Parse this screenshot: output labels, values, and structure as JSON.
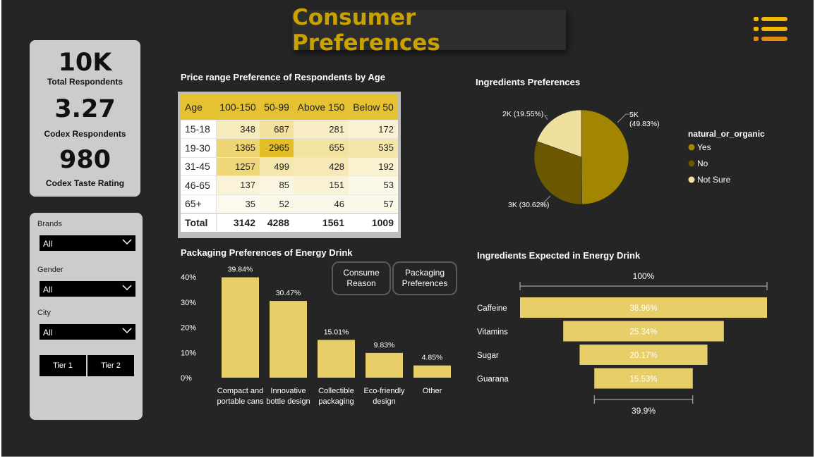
{
  "title": "Consumer Preferences",
  "colors": {
    "background": "#252525",
    "accent": "#c9a200",
    "bar": "#e8ce68"
  },
  "kpis": [
    {
      "value": "10K",
      "label": "Total Respondents"
    },
    {
      "value": "3.27",
      "label": "Codex Respondents"
    },
    {
      "value": "980",
      "label": "Codex Taste Rating"
    }
  ],
  "filters": {
    "brands": {
      "label": "Brands",
      "value": "All"
    },
    "gender": {
      "label": "Gender",
      "value": "All"
    },
    "city": {
      "label": "City",
      "value": "All"
    },
    "tier1": "Tier 1",
    "tier2": "Tier 2"
  },
  "price_matrix": {
    "title": "Price range Preference of Respondents by Age",
    "columns": [
      "Age",
      "100-150",
      "50-99",
      "Above 150",
      "Below 50"
    ],
    "rows": [
      {
        "age": "15-18",
        "values": [
          348,
          687,
          281,
          172
        ]
      },
      {
        "age": "19-30",
        "values": [
          1365,
          2965,
          655,
          535
        ]
      },
      {
        "age": "31-45",
        "values": [
          1257,
          499,
          428,
          192
        ]
      },
      {
        "age": "46-65",
        "values": [
          137,
          85,
          151,
          53
        ]
      },
      {
        "age": "65+",
        "values": [
          35,
          52,
          46,
          57
        ]
      }
    ],
    "total": {
      "label": "Total",
      "values": [
        3142,
        4288,
        1561,
        1009
      ]
    }
  },
  "buttons": {
    "consume_reason": "Consume Reason",
    "packaging_preferences": "Packaging Preferences"
  },
  "chart_data": [
    {
      "id": "ingredients-pie",
      "type": "pie",
      "title": "Ingredients Preferences",
      "legend_title": "natural_or_organic",
      "legend_position": "right",
      "slices": [
        {
          "name": "Yes",
          "value": 49.83,
          "label": "5K (49.83%)",
          "color": "#a38600"
        },
        {
          "name": "No",
          "value": 30.62,
          "label": "3K (30.62%)",
          "color": "#6b5800"
        },
        {
          "name": "Not Sure",
          "value": 19.55,
          "label": "2K (19.55%)",
          "color": "#f0e0a0"
        }
      ]
    },
    {
      "id": "packaging-bar",
      "type": "bar",
      "title": "Packaging Preferences of Energy Drink",
      "categories": [
        "Compact and portable cans",
        "Innovative bottle design",
        "Collectible packaging",
        "Eco-friendly design",
        "Other"
      ],
      "values": [
        39.84,
        30.47,
        15.01,
        9.83,
        4.85
      ],
      "data_labels": [
        "39.84%",
        "30.47%",
        "15.01%",
        "9.83%",
        "4.85%"
      ],
      "yticks": [
        "0%",
        "10%",
        "20%",
        "30%",
        "40%"
      ],
      "ylim": [
        0,
        40
      ],
      "grid": false
    },
    {
      "id": "ingredients-funnel",
      "type": "bar",
      "orientation": "funnel",
      "title": "Ingredients Expected in Energy Drink",
      "categories": [
        "Caffeine",
        "Vitamins",
        "Sugar",
        "Guarana"
      ],
      "values": [
        38.96,
        25.34,
        20.17,
        15.53
      ],
      "data_labels": [
        "38.96%",
        "25.34%",
        "20.17%",
        "15.53%"
      ],
      "top_label": "100%",
      "bottom_label": "39.9%"
    }
  ]
}
